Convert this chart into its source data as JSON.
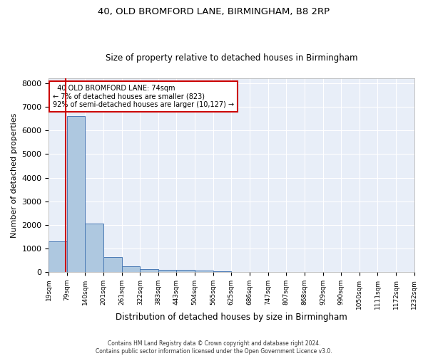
{
  "title1": "40, OLD BROMFORD LANE, BIRMINGHAM, B8 2RP",
  "title2": "Size of property relative to detached houses in Birmingham",
  "xlabel": "Distribution of detached houses by size in Birmingham",
  "ylabel": "Number of detached properties",
  "footer1": "Contains HM Land Registry data © Crown copyright and database right 2024.",
  "footer2": "Contains public sector information licensed under the Open Government Licence v3.0.",
  "annotation_line1": "  40 OLD BROMFORD LANE: 74sqm",
  "annotation_line2": "← 7% of detached houses are smaller (823)",
  "annotation_line3": "92% of semi-detached houses are larger (10,127) →",
  "property_size": 74,
  "bin_edges": [
    19,
    79,
    140,
    201,
    261,
    322,
    383,
    443,
    504,
    565,
    625,
    686,
    747,
    807,
    868,
    929,
    990,
    1050,
    1111,
    1172,
    1232
  ],
  "bar_heights": [
    1300,
    6600,
    2050,
    650,
    250,
    130,
    100,
    80,
    60,
    30,
    15,
    8,
    5,
    3,
    2,
    1,
    1,
    0,
    0,
    0
  ],
  "bar_color": "#aec8e0",
  "bar_edge_color": "#4a7ab5",
  "red_line_color": "#cc0000",
  "annotation_box_color": "#cc0000",
  "bg_color": "#ffffff",
  "plot_bg_color": "#e8eef8",
  "grid_color": "#ffffff",
  "ylim": [
    0,
    8200
  ],
  "yticks": [
    0,
    1000,
    2000,
    3000,
    4000,
    5000,
    6000,
    7000,
    8000
  ]
}
